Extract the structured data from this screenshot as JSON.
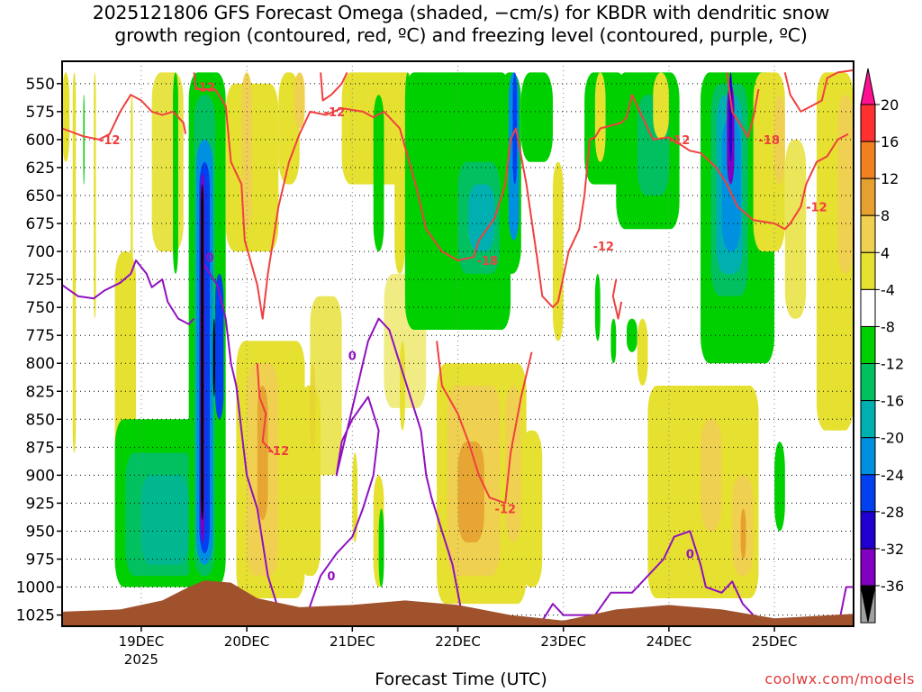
{
  "title": {
    "line1": "2025121806 GFS Forecast Omega (shaded, −cm/s) for KBDR with dendritic snow",
    "line2": "growth region (contoured, red, ºC) and freezing level (contoured, purple, ºC)"
  },
  "xlabel": "Forecast Time (UTC)",
  "credit": "coolwx.com/models",
  "chart_data": {
    "type": "heatmap",
    "xaxis": {
      "ticks": [
        "19DEC",
        "20DEC",
        "21DEC",
        "22DEC",
        "23DEC",
        "24DEC",
        "25DEC"
      ],
      "subtick": "2025",
      "range_days": [
        18.25,
        25.75
      ]
    },
    "yaxis": {
      "ticks": [
        550,
        575,
        600,
        625,
        650,
        675,
        700,
        725,
        750,
        775,
        800,
        825,
        850,
        875,
        900,
        925,
        950,
        975,
        1000,
        1025
      ],
      "range_hPa": [
        530,
        1035
      ]
    },
    "colorbar": {
      "levels": [
        "20",
        "16",
        "12",
        "8",
        "4",
        "-4",
        "-8",
        "-12",
        "-16",
        "-20",
        "-24",
        "-28",
        "-32",
        "-36"
      ],
      "colors": [
        "#ff4060",
        "#ff3030",
        "#f08020",
        "#e6a030",
        "#f0d050",
        "#e6e030",
        "#ffffff",
        "#00d000",
        "#00c060",
        "#00b0b0",
        "#0090e0",
        "#0040f0",
        "#2000d0",
        "#8000c0",
        "#a0a0a0",
        "#000000"
      ],
      "top_arrow_color": "#ff1090",
      "bottom_arrow_color": "#000000"
    },
    "snow_growth_contour": {
      "color": "#f04040",
      "label": "-12",
      "label2": "-18"
    },
    "freezing_contour": {
      "color": "#9010c0",
      "label": "0"
    },
    "terrain_color": "#a0522d",
    "grid": "dotted"
  }
}
